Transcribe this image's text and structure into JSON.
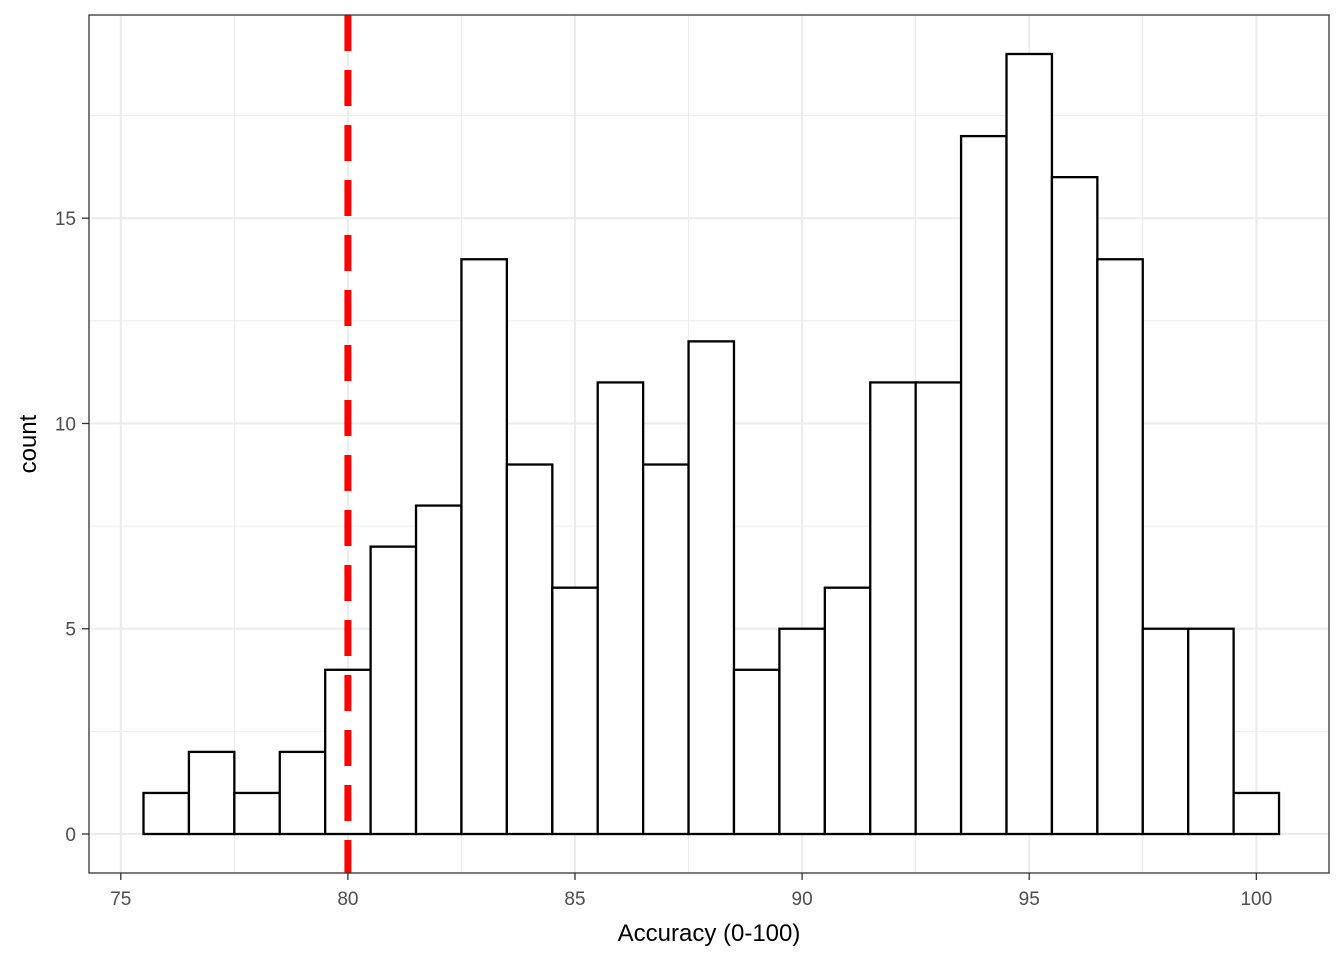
{
  "chart_data": {
    "type": "bar",
    "xlabel": "Accuracy (0-100)",
    "ylabel": "count",
    "xlim": [
      74.3,
      101.6
    ],
    "ylim": [
      -0.95,
      19.95
    ],
    "bin_width": 1,
    "x_ticks": [
      {
        "value": 75,
        "label": "75"
      },
      {
        "value": 80,
        "label": "80"
      },
      {
        "value": 85,
        "label": "85"
      },
      {
        "value": 90,
        "label": "90"
      },
      {
        "value": 95,
        "label": "95"
      },
      {
        "value": 100,
        "label": "100"
      }
    ],
    "y_ticks": [
      {
        "value": 0,
        "label": "0"
      },
      {
        "value": 5,
        "label": "5"
      },
      {
        "value": 10,
        "label": "10"
      },
      {
        "value": 15,
        "label": "15"
      }
    ],
    "bins": [
      {
        "x": 76,
        "count": 1
      },
      {
        "x": 77,
        "count": 2
      },
      {
        "x": 78,
        "count": 1
      },
      {
        "x": 79,
        "count": 2
      },
      {
        "x": 80,
        "count": 4
      },
      {
        "x": 81,
        "count": 7
      },
      {
        "x": 82,
        "count": 8
      },
      {
        "x": 83,
        "count": 14
      },
      {
        "x": 84,
        "count": 9
      },
      {
        "x": 85,
        "count": 6
      },
      {
        "x": 86,
        "count": 11
      },
      {
        "x": 87,
        "count": 9
      },
      {
        "x": 88,
        "count": 12
      },
      {
        "x": 89,
        "count": 4
      },
      {
        "x": 90,
        "count": 5
      },
      {
        "x": 91,
        "count": 6
      },
      {
        "x": 92,
        "count": 11
      },
      {
        "x": 93,
        "count": 11
      },
      {
        "x": 94,
        "count": 17
      },
      {
        "x": 95,
        "count": 19
      },
      {
        "x": 96,
        "count": 16
      },
      {
        "x": 97,
        "count": 14
      },
      {
        "x": 98,
        "count": 5
      },
      {
        "x": 99,
        "count": 5
      },
      {
        "x": 100,
        "count": 1
      }
    ],
    "reference_line": {
      "x": 80,
      "color": "#ff0000",
      "style": "dashed"
    },
    "bar_fill": "#ffffff",
    "bar_stroke": "#000000",
    "grid": true,
    "legend": "none"
  }
}
